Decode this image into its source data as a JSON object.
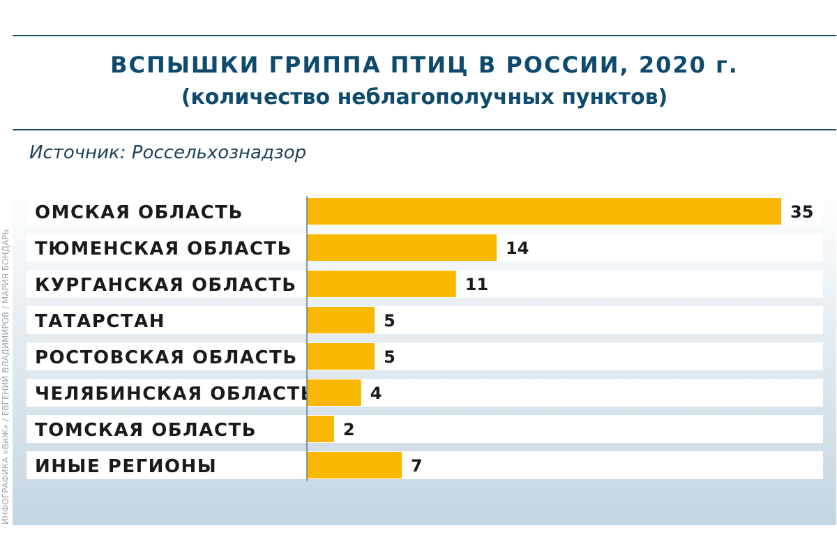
{
  "header": {
    "title": "ВСПЫШКИ ГРИППА ПТИЦ В РОССИИ, 2020 г.",
    "subtitle": "(количество неблагополучных пунктов)",
    "source": "Источник: Россельхознадзор"
  },
  "credit": "ИНФОГРАФИКА «ВиЖ» / ЕВГЕНИЙ ВЛАДИМИРОВ / МАРИЯ БОНДАРЬ",
  "colors": {
    "bar": "#fab800",
    "row_bg": "#ffffff",
    "accent": "#0e4a6e",
    "axis": "#5a7891"
  },
  "chart_data": {
    "type": "bar",
    "orientation": "horizontal",
    "title": "ВСПЫШКИ ГРИППА ПТИЦ В РОССИИ, 2020 г.",
    "subtitle": "(количество неблагополучных пунктов)",
    "categories": [
      "ОМСКАЯ ОБЛАСТЬ",
      "ТЮМЕНСКАЯ ОБЛАСТЬ",
      "КУРГАНСКАЯ ОБЛАСТЬ",
      "ТАТАРСТАН",
      "РОСТОВСКАЯ ОБЛАСТЬ",
      "ЧЕЛЯБИНСКАЯ ОБЛАСТЬ",
      "ТОМСКАЯ ОБЛАСТЬ",
      "ИНЫЕ РЕГИОНЫ"
    ],
    "values": [
      35,
      14,
      11,
      5,
      5,
      4,
      2,
      7
    ],
    "xlim": [
      0,
      35
    ],
    "grid": false,
    "legend": "none"
  }
}
